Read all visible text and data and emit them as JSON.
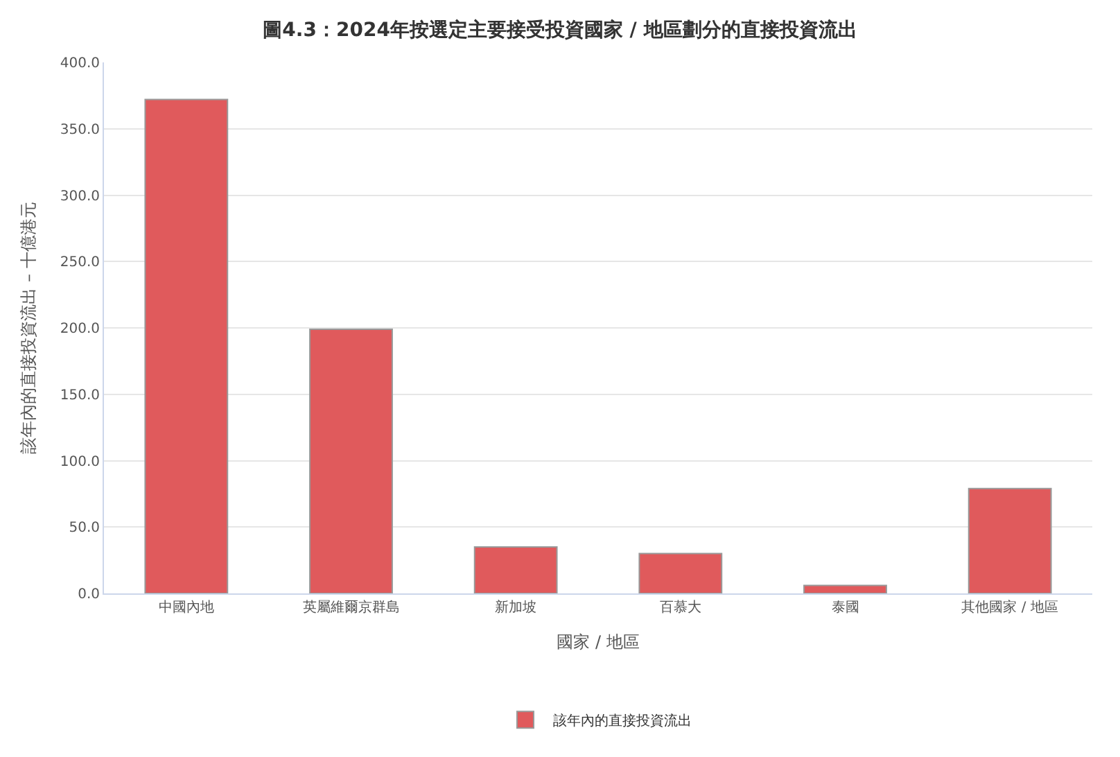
{
  "chart_data": {
    "type": "bar",
    "title": "圖4.3：2024年按選定主要接受投資國家 / 地區劃分的直接投資流出",
    "xlabel": "國家 / 地區",
    "ylabel": "該年內的直接投資流出 – 十億港元",
    "categories": [
      "中國內地",
      "英屬維爾京群島",
      "新加坡",
      "百慕大",
      "泰國",
      "其他國家 / 地區"
    ],
    "series": [
      {
        "name": "該年內的直接投資流出",
        "color": "#e05a5c",
        "values": [
          372,
          199,
          35,
          30,
          6,
          79
        ]
      }
    ],
    "ylim": [
      0,
      400
    ],
    "yticks": [
      {
        "value": 0,
        "label": "0.0"
      },
      {
        "value": 50,
        "label": "50.0"
      },
      {
        "value": 100,
        "label": "100.0"
      },
      {
        "value": 150,
        "label": "150.0"
      },
      {
        "value": 200,
        "label": "200.0"
      },
      {
        "value": 250,
        "label": "250.0"
      },
      {
        "value": 300,
        "label": "300.0"
      },
      {
        "value": 350,
        "label": "350.0"
      },
      {
        "value": 400,
        "label": "400.0"
      }
    ],
    "grid": "y",
    "legend": "bottom"
  }
}
